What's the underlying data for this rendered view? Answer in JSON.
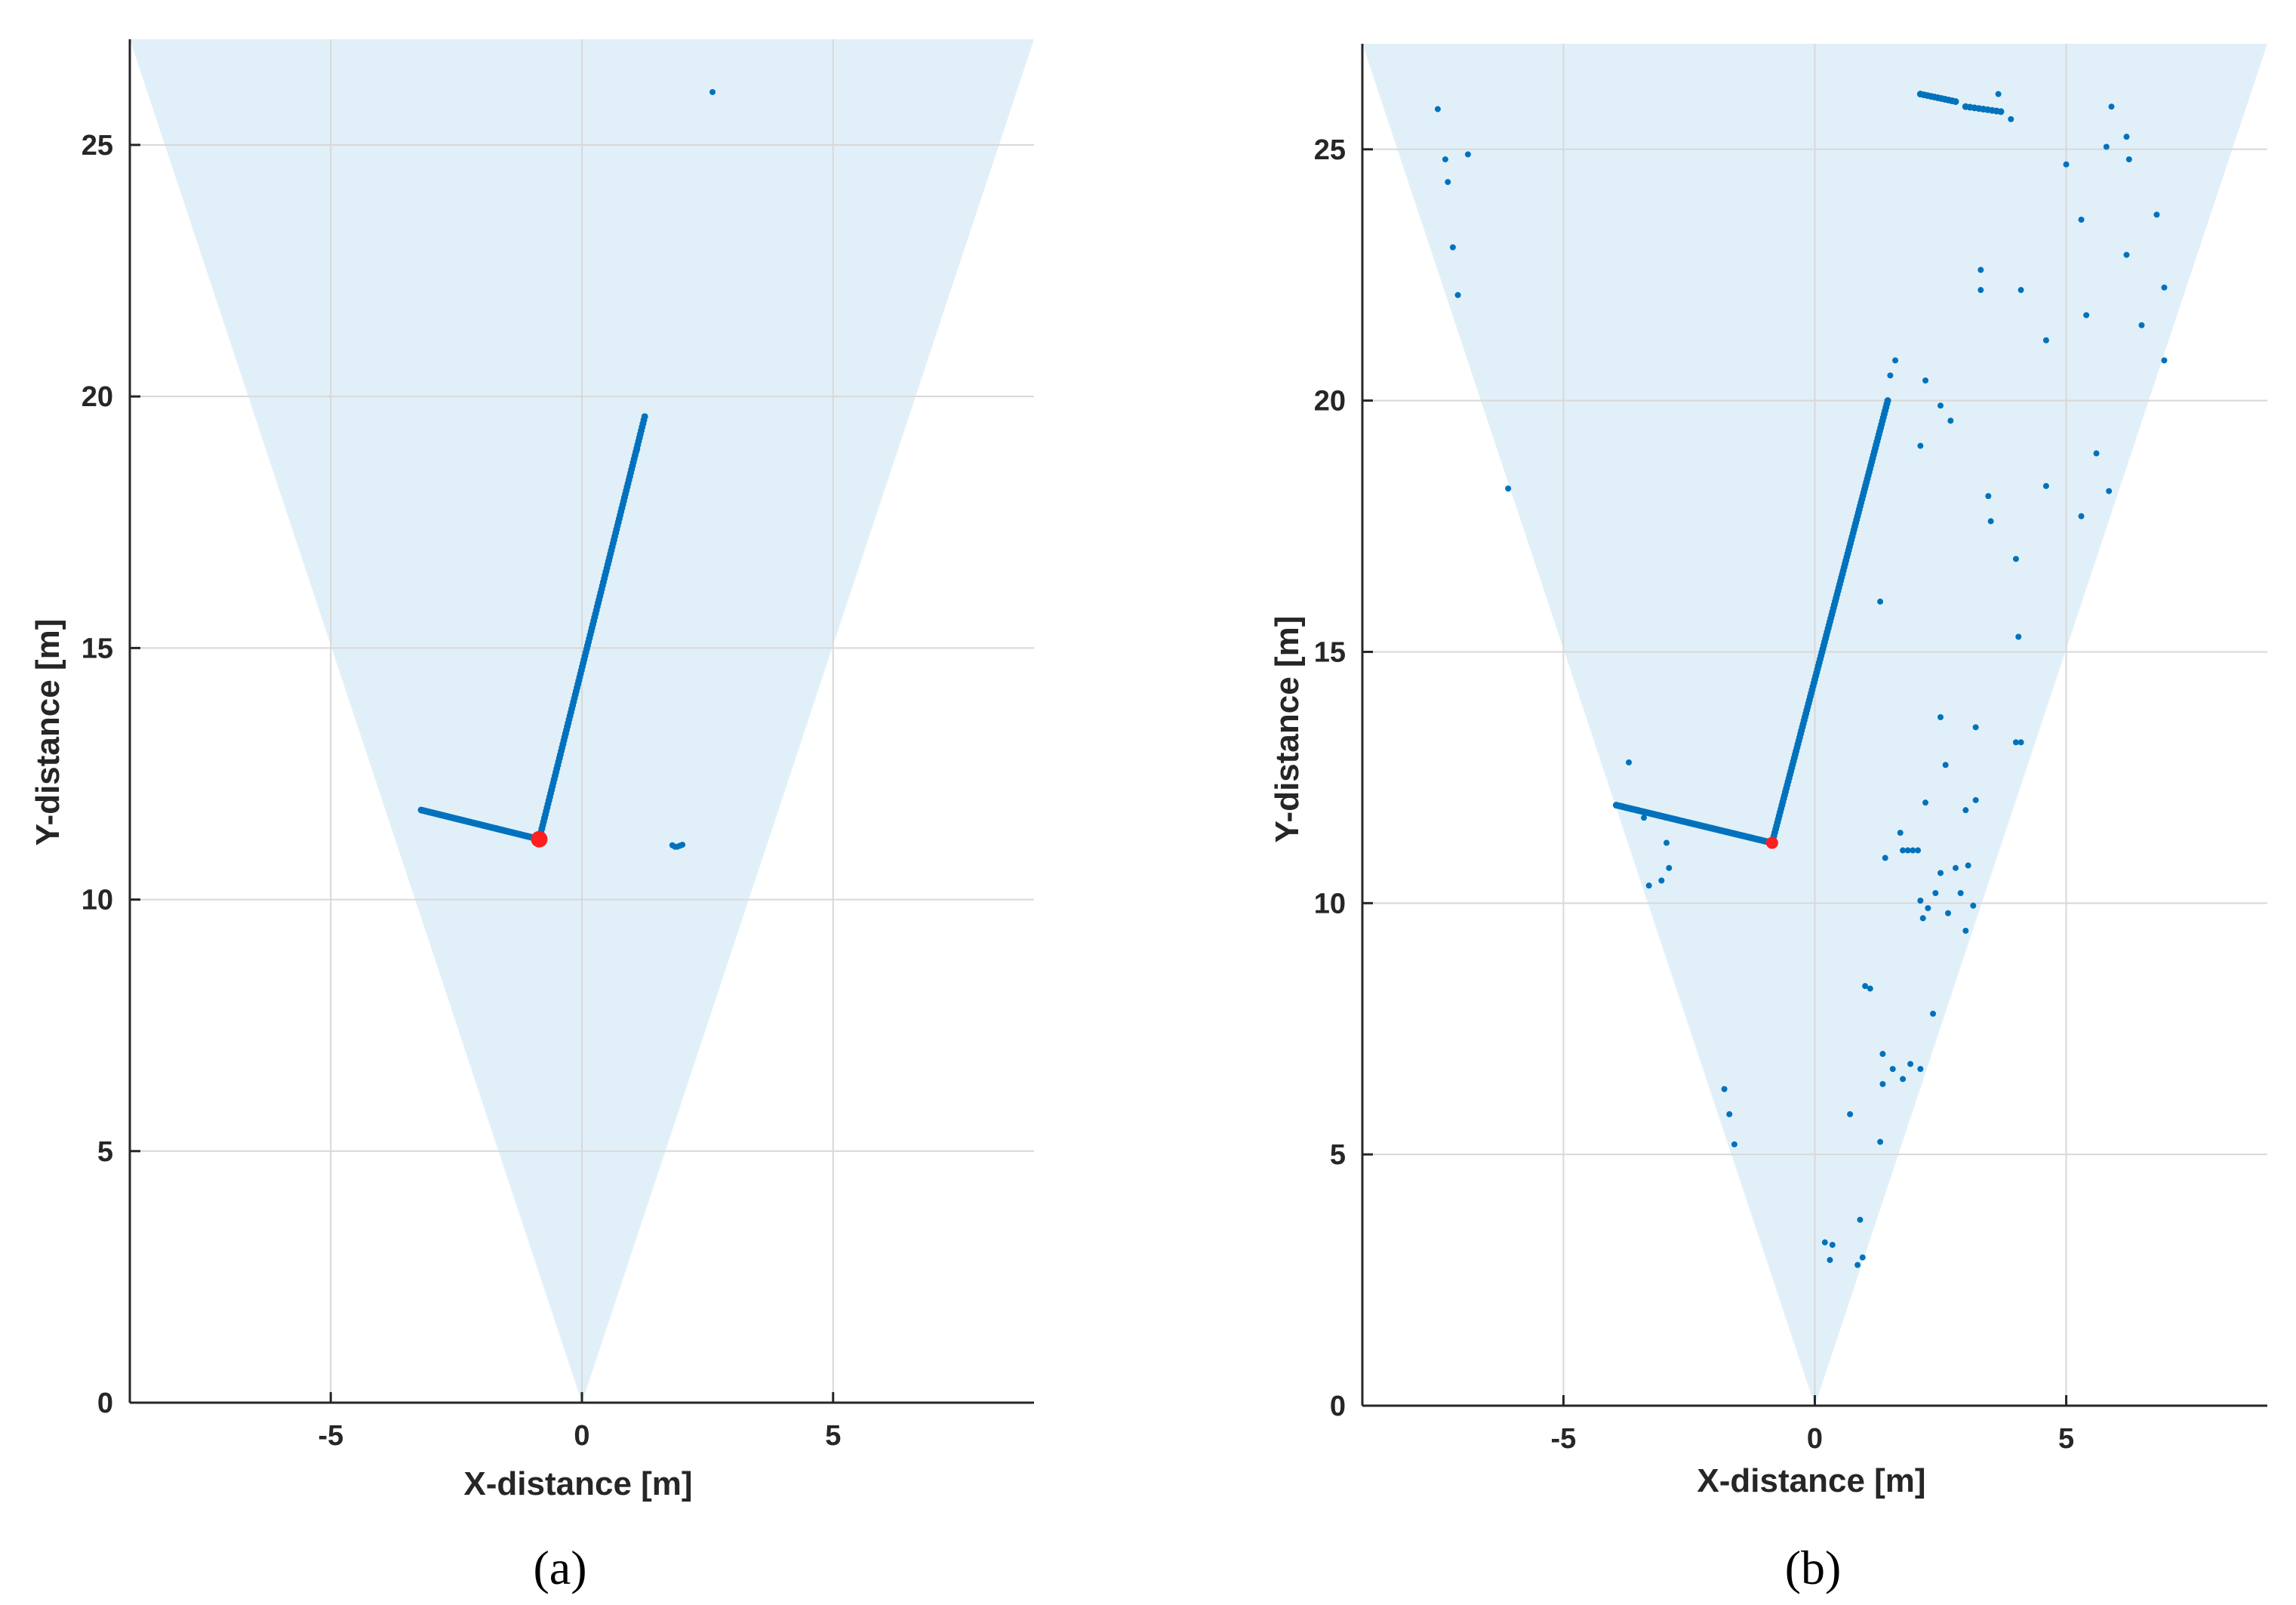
{
  "chart_data": [
    {
      "type": "scatter",
      "caption": "(a)",
      "xlabel": "X-distance [m]",
      "ylabel": "Y-distance [m]",
      "xlim": [
        -9,
        9
      ],
      "ylim": [
        0,
        27.1
      ],
      "xticks": [
        -5,
        0,
        5
      ],
      "yticks": [
        0,
        5,
        10,
        15,
        20,
        25
      ],
      "grid": true,
      "fov_wedge": {
        "apex": [
          0,
          0
        ],
        "top_left": [
          -9,
          27.1
        ],
        "top_right": [
          9,
          27.1
        ],
        "color": "#e1f0f8"
      },
      "point_color": "#0072bd",
      "marker_color": "#ff1f1f",
      "red_marker": [
        -0.85,
        11.2
      ],
      "segments": [
        {
          "from": [
            -3.2,
            11.78
          ],
          "to": [
            -0.85,
            11.2
          ],
          "count": 55
        },
        {
          "from": [
            -0.85,
            11.2
          ],
          "to": [
            1.25,
            19.6
          ],
          "count": 120
        }
      ],
      "points": [
        [
          2.6,
          26.05
        ],
        [
          1.8,
          11.08
        ],
        [
          1.85,
          11.05
        ],
        [
          1.9,
          11.05
        ],
        [
          1.95,
          11.07
        ],
        [
          2.0,
          11.09
        ],
        [
          1.1,
          18.95
        ],
        [
          1.15,
          19.2
        ]
      ]
    },
    {
      "type": "scatter",
      "caption": "(b)",
      "xlabel": "X-distance [m]",
      "ylabel": "Y-distance [m]",
      "xlim": [
        -9,
        9
      ],
      "ylim": [
        0,
        27.1
      ],
      "xticks": [
        -5,
        0,
        5
      ],
      "yticks": [
        0,
        5,
        10,
        15,
        20,
        25
      ],
      "grid": true,
      "fov_wedge": {
        "apex": [
          0,
          0
        ],
        "top_left": [
          -9,
          27.1
        ],
        "top_right": [
          9,
          27.1
        ],
        "color": "#e1f0f8"
      },
      "point_color": "#0072bd",
      "marker_color": "#ff1f1f",
      "red_marker": [
        -0.85,
        11.2
      ],
      "segments": [
        {
          "from": [
            -3.95,
            11.95
          ],
          "to": [
            -0.85,
            11.2
          ],
          "count": 70
        },
        {
          "from": [
            -0.85,
            11.2
          ],
          "to": [
            1.45,
            20.0
          ],
          "count": 130
        },
        {
          "from": [
            2.1,
            26.1
          ],
          "to": [
            2.8,
            25.95
          ],
          "count": 10
        },
        {
          "from": [
            3.0,
            25.85
          ],
          "to": [
            3.7,
            25.75
          ],
          "count": 8
        }
      ],
      "points": [
        [
          -7.5,
          25.8
        ],
        [
          -7.35,
          24.8
        ],
        [
          -7.3,
          24.35
        ],
        [
          -7.2,
          23.05
        ],
        [
          -7.1,
          22.1
        ],
        [
          -6.9,
          24.9
        ],
        [
          -6.1,
          18.25
        ],
        [
          1.5,
          20.5
        ],
        [
          1.6,
          20.8
        ],
        [
          2.2,
          20.4
        ],
        [
          2.1,
          19.1
        ],
        [
          2.5,
          19.9
        ],
        [
          2.7,
          19.6
        ],
        [
          3.3,
          22.6
        ],
        [
          3.3,
          22.2
        ],
        [
          4.1,
          22.2
        ],
        [
          3.45,
          18.1
        ],
        [
          3.5,
          17.6
        ],
        [
          4.6,
          21.2
        ],
        [
          4.6,
          18.3
        ],
        [
          5.0,
          24.7
        ],
        [
          5.3,
          23.6
        ],
        [
          5.4,
          21.7
        ],
        [
          5.3,
          17.7
        ],
        [
          5.6,
          18.95
        ],
        [
          5.85,
          18.2
        ],
        [
          5.8,
          25.05
        ],
        [
          5.9,
          25.85
        ],
        [
          6.2,
          25.25
        ],
        [
          6.25,
          24.8
        ],
        [
          6.2,
          22.9
        ],
        [
          6.5,
          21.5
        ],
        [
          6.8,
          23.7
        ],
        [
          6.95,
          22.25
        ],
        [
          6.95,
          20.8
        ],
        [
          3.65,
          26.1
        ],
        [
          3.9,
          25.6
        ],
        [
          4.0,
          16.85
        ],
        [
          4.05,
          15.3
        ],
        [
          4.0,
          13.2
        ],
        [
          4.1,
          13.2
        ],
        [
          1.3,
          16.0
        ],
        [
          -3.7,
          12.8
        ],
        [
          -3.4,
          11.7
        ],
        [
          -3.3,
          10.35
        ],
        [
          -3.05,
          10.45
        ],
        [
          -2.9,
          10.7
        ],
        [
          -2.95,
          11.2
        ],
        [
          2.5,
          13.7
        ],
        [
          2.6,
          12.75
        ],
        [
          3.2,
          13.5
        ],
        [
          3.2,
          12.05
        ],
        [
          3.0,
          11.85
        ],
        [
          1.4,
          10.9
        ],
        [
          1.75,
          11.05
        ],
        [
          1.85,
          11.05
        ],
        [
          1.95,
          11.05
        ],
        [
          2.05,
          11.05
        ],
        [
          1.7,
          11.4
        ],
        [
          2.2,
          12.0
        ],
        [
          2.1,
          10.05
        ],
        [
          2.15,
          9.7
        ],
        [
          2.25,
          9.9
        ],
        [
          2.4,
          10.2
        ],
        [
          2.5,
          10.6
        ],
        [
          2.65,
          9.8
        ],
        [
          2.8,
          10.7
        ],
        [
          2.9,
          10.2
        ],
        [
          3.0,
          9.45
        ],
        [
          3.05,
          10.75
        ],
        [
          3.15,
          9.95
        ],
        [
          1.0,
          8.35
        ],
        [
          1.1,
          8.3
        ],
        [
          2.35,
          7.8
        ],
        [
          1.35,
          7.0
        ],
        [
          1.55,
          6.7
        ],
        [
          1.35,
          6.4
        ],
        [
          1.75,
          6.5
        ],
        [
          1.9,
          6.8
        ],
        [
          2.1,
          6.7
        ],
        [
          -1.8,
          6.3
        ],
        [
          -1.7,
          5.8
        ],
        [
          -1.6,
          5.2
        ],
        [
          0.7,
          5.8
        ],
        [
          1.3,
          5.25
        ],
        [
          0.2,
          3.25
        ],
        [
          0.35,
          3.2
        ],
        [
          0.3,
          2.9
        ],
        [
          0.9,
          3.7
        ],
        [
          0.85,
          2.8
        ],
        [
          0.95,
          2.95
        ]
      ]
    }
  ]
}
